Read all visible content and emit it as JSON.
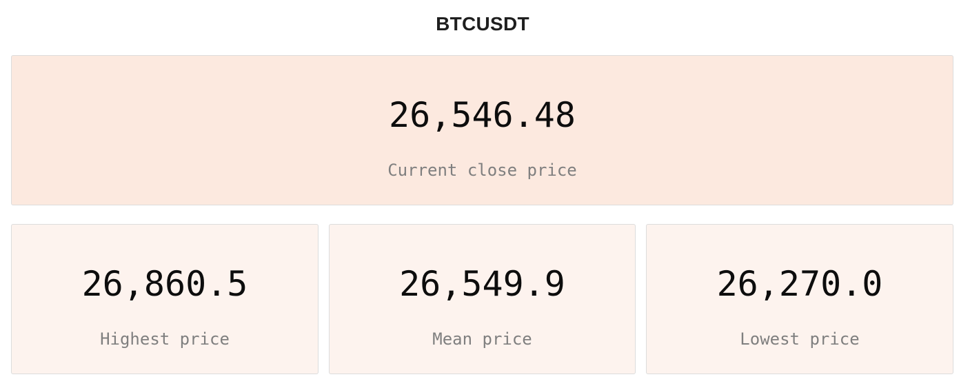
{
  "header": {
    "title": "BTCUSDT"
  },
  "current": {
    "value": "26,546.48",
    "label": "Current close price"
  },
  "stats": [
    {
      "value": "26,860.5",
      "label": "Highest price"
    },
    {
      "value": "26,549.9",
      "label": "Mean price"
    },
    {
      "value": "26,270.0",
      "label": "Lowest price"
    }
  ],
  "colors": {
    "main_card_bg": "#fce9df",
    "stat_card_bg": "#fdf3ee",
    "card_border": "#dcdcdc"
  }
}
